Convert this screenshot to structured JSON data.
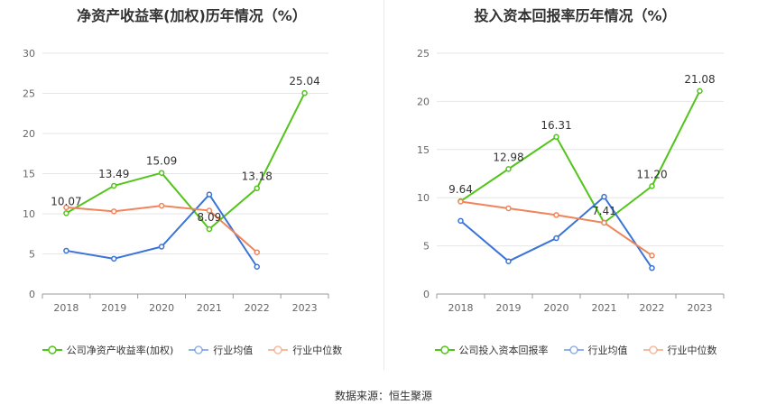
{
  "source": "数据来源：恒生聚源",
  "chart_data": [
    {
      "type": "line",
      "title": "净资产收益率(加权)历年情况（%）",
      "x": [
        "2018",
        "2019",
        "2020",
        "2021",
        "2022",
        "2023"
      ],
      "ylim": [
        0,
        30
      ],
      "yticks": [
        0,
        5,
        10,
        15,
        20,
        25,
        30
      ],
      "grid": true,
      "legend_position": "bottom",
      "series": [
        {
          "name": "公司净资产收益率(加权)",
          "color": "#52c41a",
          "values": [
            10.07,
            13.49,
            15.09,
            8.09,
            13.18,
            25.04
          ],
          "labels": true
        },
        {
          "name": "行业均值",
          "color": "#3a74d8",
          "values": [
            5.4,
            4.4,
            5.9,
            12.4,
            3.4,
            null
          ],
          "labels": false
        },
        {
          "name": "行业中位数",
          "color": "#f0845a",
          "values": [
            10.8,
            10.3,
            11.0,
            10.4,
            5.2,
            null
          ],
          "labels": false
        }
      ]
    },
    {
      "type": "line",
      "title": "投入资本回报率历年情况（%）",
      "x": [
        "2018",
        "2019",
        "2020",
        "2021",
        "2022",
        "2023"
      ],
      "ylim": [
        0,
        25
      ],
      "yticks": [
        0,
        5,
        10,
        15,
        20,
        25
      ],
      "grid": true,
      "legend_position": "bottom",
      "series": [
        {
          "name": "公司投入资本回报率",
          "color": "#52c41a",
          "values": [
            9.64,
            12.98,
            16.31,
            7.41,
            11.2,
            21.08
          ],
          "labels": true
        },
        {
          "name": "行业均值",
          "color": "#3a74d8",
          "values": [
            7.6,
            3.4,
            5.8,
            10.1,
            2.7,
            null
          ],
          "labels": false
        },
        {
          "name": "行业中位数",
          "color": "#f0845a",
          "values": [
            9.6,
            8.9,
            8.2,
            7.4,
            4.0,
            null
          ],
          "labels": false
        }
      ]
    }
  ]
}
